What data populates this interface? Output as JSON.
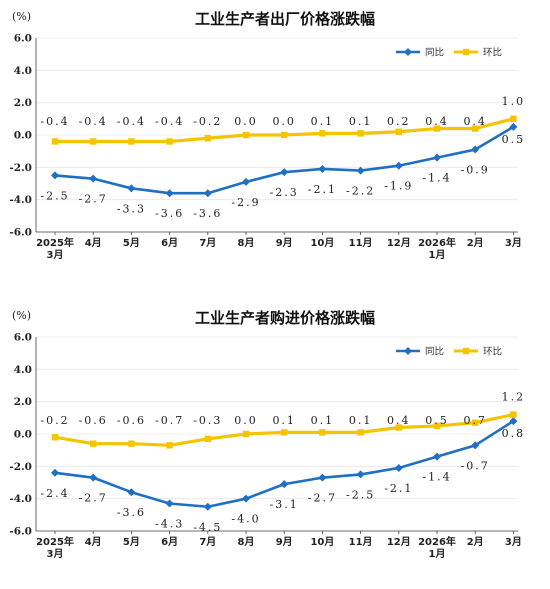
{
  "chart_data": [
    {
      "type": "line",
      "title": "工业生产者出厂价格涨跌幅",
      "ylabel": "(%)",
      "ylim": [
        -6.0,
        6.0
      ],
      "yticks": [
        "6.0",
        "4.0",
        "2.0",
        "0.0",
        "-2.0",
        "-4.0",
        "-6.0"
      ],
      "categories": [
        [
          "2025年",
          "3月"
        ],
        [
          "4月"
        ],
        [
          "5月"
        ],
        [
          "6月"
        ],
        [
          "7月"
        ],
        [
          "8月"
        ],
        [
          "9月"
        ],
        [
          "10月"
        ],
        [
          "11月"
        ],
        [
          "12月"
        ],
        [
          "2026年",
          "1月"
        ],
        [
          "2月"
        ],
        [
          "3月"
        ]
      ],
      "legend_position": "top-right",
      "series": [
        {
          "name": "同比",
          "color": "#1f6fc4",
          "marker": "diamond",
          "values": [
            -2.5,
            -2.7,
            -3.3,
            -3.6,
            -3.6,
            -2.9,
            -2.3,
            -2.1,
            -2.2,
            -1.9,
            -1.4,
            -0.9,
            0.5
          ],
          "labels": [
            "-2.5",
            "-2.7",
            "-3.3",
            "-3.6",
            "-3.6",
            "-2.9",
            "-2.3",
            "-2.1",
            "-2.2",
            "-1.9",
            "-1.4",
            "-0.9",
            "0.5"
          ]
        },
        {
          "name": "环比",
          "color": "#f5c400",
          "marker": "square",
          "values": [
            -0.4,
            -0.4,
            -0.4,
            -0.4,
            -0.2,
            0.0,
            0.0,
            0.1,
            0.1,
            0.2,
            0.4,
            0.4,
            1.0
          ],
          "labels": [
            "-0.4",
            "-0.4",
            "-0.4",
            "-0.4",
            "-0.2",
            "0.0",
            "0.0",
            "0.1",
            "0.1",
            "0.2",
            "0.4",
            "0.4",
            "1.0"
          ]
        }
      ]
    },
    {
      "type": "line",
      "title": "工业生产者购进价格涨跌幅",
      "ylabel": "(%)",
      "ylim": [
        -6.0,
        6.0
      ],
      "yticks": [
        "6.0",
        "4.0",
        "2.0",
        "0.0",
        "-2.0",
        "-4.0",
        "-6.0"
      ],
      "categories": [
        [
          "2025年",
          "3月"
        ],
        [
          "4月"
        ],
        [
          "5月"
        ],
        [
          "6月"
        ],
        [
          "7月"
        ],
        [
          "8月"
        ],
        [
          "9月"
        ],
        [
          "10月"
        ],
        [
          "11月"
        ],
        [
          "12月"
        ],
        [
          "2026年",
          "1月"
        ],
        [
          "2月"
        ],
        [
          "3月"
        ]
      ],
      "legend_position": "top-right",
      "series": [
        {
          "name": "同比",
          "color": "#1f6fc4",
          "marker": "diamond",
          "values": [
            -2.4,
            -2.7,
            -3.6,
            -4.3,
            -4.5,
            -4.0,
            -3.1,
            -2.7,
            -2.5,
            -2.1,
            -1.4,
            -0.7,
            0.8
          ],
          "labels": [
            "-2.4",
            "-2.7",
            "-3.6",
            "-4.3",
            "-4.5",
            "-4.0",
            "-3.1",
            "-2.7",
            "-2.5",
            "-2.1",
            "-1.4",
            "-0.7",
            "0.8"
          ]
        },
        {
          "name": "环比",
          "color": "#f5c400",
          "marker": "square",
          "values": [
            -0.2,
            -0.6,
            -0.6,
            -0.7,
            -0.3,
            0.0,
            0.1,
            0.1,
            0.1,
            0.4,
            0.5,
            0.7,
            1.2
          ],
          "labels": [
            "-0.2",
            "-0.6",
            "-0.6",
            "-0.7",
            "-0.3",
            "0.0",
            "0.1",
            "0.1",
            "0.1",
            "0.4",
            "0.5",
            "0.7",
            "1.2"
          ]
        }
      ]
    }
  ]
}
